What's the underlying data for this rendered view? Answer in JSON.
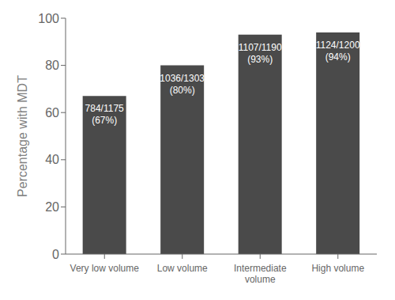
{
  "chart_data": {
    "type": "bar",
    "categories": [
      "Very low volume",
      "Low volume",
      "Intermediate\nvolume",
      "High volume"
    ],
    "values": [
      67,
      80,
      93,
      94
    ],
    "value_labels": [
      "784/1175\n(67%)",
      "1036/1303\n(80%)",
      "1107/1190\n(93%)",
      "1124/1200\n(94%)"
    ],
    "data_labels": true,
    "color": "#4a4a4a",
    "ylabel": "Percentage with MDT",
    "ylim": [
      0,
      100
    ],
    "yticks": [
      0,
      20,
      40,
      60,
      80,
      100
    ],
    "grid": false
  }
}
